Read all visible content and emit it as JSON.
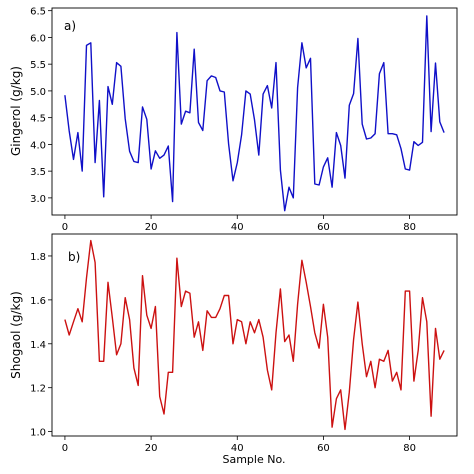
{
  "chart_data": [
    {
      "type": "line",
      "panel_label": "a)",
      "ylabel": "Gingerol (g/kg)",
      "xlabel": "",
      "xlim": [
        -3,
        91
      ],
      "ylim": [
        2.68,
        6.55
      ],
      "xticks": [
        0,
        20,
        40,
        60,
        80
      ],
      "xtick_labels": [
        "0",
        "20",
        "40",
        "60",
        "80"
      ],
      "yticks": [
        3.0,
        3.5,
        4.0,
        4.5,
        5.0,
        5.5,
        6.0,
        6.5
      ],
      "ytick_labels": [
        "3.0",
        "3.5",
        "4.0",
        "4.5",
        "5.0",
        "5.5",
        "6.0",
        "6.5"
      ],
      "color": "#1010c8",
      "series": [
        {
          "x": [
            0,
            1,
            2,
            3,
            4,
            5,
            6,
            7,
            8,
            9,
            10,
            11,
            12,
            13,
            14,
            15,
            16,
            17,
            18,
            19,
            20,
            21,
            22,
            23,
            24,
            25,
            26,
            27,
            28,
            29,
            30,
            31,
            32,
            33,
            34,
            35,
            36,
            37,
            38,
            39,
            40,
            41,
            42,
            43,
            44,
            45,
            46,
            47,
            48,
            49,
            50,
            51,
            52,
            53,
            54,
            55,
            56,
            57,
            58,
            59,
            60,
            61,
            62,
            63,
            64,
            65,
            66,
            67,
            68,
            69,
            70,
            71,
            72,
            73,
            74,
            75,
            76,
            77,
            78,
            79,
            80,
            81,
            82,
            83,
            84,
            85,
            86,
            87,
            88
          ],
          "values": [
            4.92,
            4.25,
            3.72,
            4.22,
            3.5,
            5.85,
            5.9,
            3.66,
            4.82,
            3.02,
            5.08,
            4.75,
            5.53,
            5.46,
            4.48,
            3.87,
            3.68,
            3.66,
            4.7,
            4.47,
            3.54,
            3.88,
            3.74,
            3.8,
            3.97,
            2.93,
            6.09,
            4.38,
            4.62,
            4.59,
            5.78,
            4.41,
            4.26,
            5.19,
            5.28,
            5.25,
            5.0,
            4.98,
            4.01,
            3.32,
            3.66,
            4.18,
            5.0,
            4.94,
            4.46,
            3.8,
            4.94,
            5.1,
            4.68,
            5.53,
            3.52,
            2.76,
            3.2,
            3.0,
            5.06,
            5.9,
            5.43,
            5.61,
            3.26,
            3.24,
            3.58,
            3.75,
            3.2,
            4.22,
            3.98,
            3.37,
            4.73,
            4.95,
            5.98,
            4.38,
            4.1,
            4.12,
            4.2,
            5.32,
            5.53,
            4.2,
            4.2,
            4.18,
            3.92,
            3.54,
            3.52,
            4.05,
            3.98,
            4.04,
            6.4,
            4.24,
            5.52,
            4.42,
            4.22
          ]
        }
      ]
    },
    {
      "type": "line",
      "panel_label": "b)",
      "ylabel": "Shogaol (g/kg)",
      "xlabel": "Sample No.",
      "xlim": [
        -3,
        91
      ],
      "ylim": [
        0.98,
        1.9
      ],
      "xticks": [
        0,
        20,
        40,
        60,
        80
      ],
      "xtick_labels": [
        "0",
        "20",
        "40",
        "60",
        "80"
      ],
      "yticks": [
        1.0,
        1.2,
        1.4,
        1.6,
        1.8
      ],
      "ytick_labels": [
        "1.0",
        "1.2",
        "1.4",
        "1.6",
        "1.8"
      ],
      "color": "#cc1111",
      "series": [
        {
          "x": [
            0,
            1,
            2,
            3,
            4,
            5,
            6,
            7,
            8,
            9,
            10,
            11,
            12,
            13,
            14,
            15,
            16,
            17,
            18,
            19,
            20,
            21,
            22,
            23,
            24,
            25,
            26,
            27,
            28,
            29,
            30,
            31,
            32,
            33,
            34,
            35,
            36,
            37,
            38,
            39,
            40,
            41,
            42,
            43,
            44,
            45,
            46,
            47,
            48,
            49,
            50,
            51,
            52,
            53,
            54,
            55,
            56,
            57,
            58,
            59,
            60,
            61,
            62,
            63,
            64,
            65,
            66,
            67,
            68,
            69,
            70,
            71,
            72,
            73,
            74,
            75,
            76,
            77,
            78,
            79,
            80,
            81,
            82,
            83,
            84,
            85,
            86,
            87,
            88
          ],
          "values": [
            1.51,
            1.44,
            1.5,
            1.56,
            1.5,
            1.7,
            1.87,
            1.77,
            1.32,
            1.32,
            1.68,
            1.52,
            1.35,
            1.4,
            1.61,
            1.51,
            1.29,
            1.21,
            1.71,
            1.53,
            1.47,
            1.57,
            1.16,
            1.08,
            1.27,
            1.27,
            1.79,
            1.57,
            1.64,
            1.63,
            1.43,
            1.5,
            1.37,
            1.55,
            1.52,
            1.52,
            1.56,
            1.62,
            1.62,
            1.4,
            1.51,
            1.5,
            1.4,
            1.5,
            1.45,
            1.51,
            1.43,
            1.28,
            1.19,
            1.45,
            1.65,
            1.41,
            1.44,
            1.32,
            1.58,
            1.78,
            1.68,
            1.57,
            1.45,
            1.38,
            1.58,
            1.43,
            1.02,
            1.15,
            1.19,
            1.01,
            1.18,
            1.42,
            1.59,
            1.4,
            1.25,
            1.32,
            1.2,
            1.33,
            1.32,
            1.37,
            1.23,
            1.27,
            1.19,
            1.64,
            1.64,
            1.23,
            1.37,
            1.61,
            1.5,
            1.07,
            1.47,
            1.33,
            1.37
          ]
        }
      ]
    }
  ]
}
